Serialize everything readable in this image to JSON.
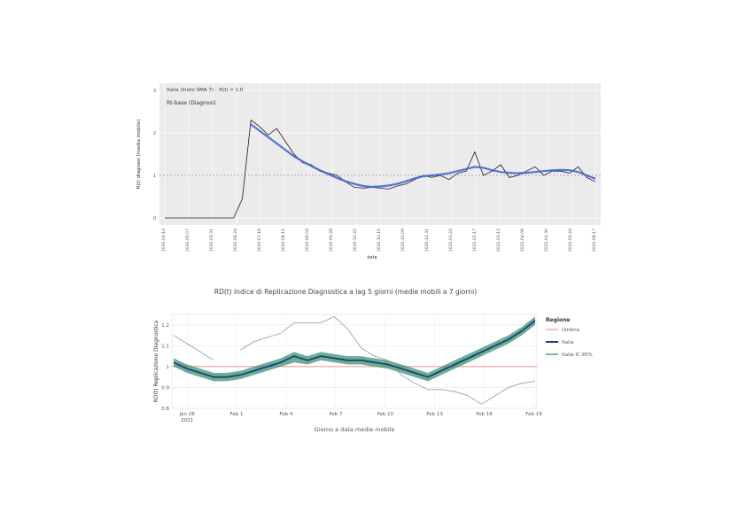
{
  "chart_data": [
    {
      "type": "line",
      "title": "",
      "annotations": [
        "Italia (Inizio SMA 7) – R(t) ≈ 1.0",
        "Rt-base (Diagnosi)"
      ],
      "xlabel": "data",
      "ylabel": "R(t) diagnosi (media mobile)",
      "yticks": [
        "0",
        "1",
        "2",
        "3"
      ],
      "ylim": [
        0,
        3
      ],
      "reference_line": 1.0,
      "x_tick_labels": [
        "2020-04-14",
        "2020-05-07",
        "2020-05-31",
        "2020-06-24",
        "2020-07-18",
        "2020-08-11",
        "2020-09-04",
        "2020-09-28",
        "2020-10-22",
        "2020-11-15",
        "2020-12-09",
        "2020-12-31",
        "2021-01-24",
        "2021-02-17",
        "2021-03-13",
        "2021-04-06",
        "2021-04-30",
        "2021-05-24",
        "2021-06-17"
      ],
      "x": [
        0,
        2,
        4,
        6,
        8,
        10,
        12,
        14,
        16,
        18,
        20,
        22,
        24,
        26,
        28,
        30,
        32,
        34,
        36,
        38,
        40,
        42,
        44,
        46,
        48,
        50,
        52,
        54,
        56,
        58,
        60,
        62,
        64,
        66,
        68,
        70,
        72,
        74,
        76,
        78,
        80,
        82,
        84,
        86,
        88,
        90,
        92,
        94,
        96,
        98,
        100
      ],
      "series": [
        {
          "name": "",
          "values": [
            0,
            0,
            0,
            0,
            0,
            0,
            0,
            0,
            0,
            0.45,
            2.3,
            2.15,
            1.95,
            2.1,
            1.8,
            1.5,
            1.3,
            1.25,
            1.1,
            1.05,
            1.0,
            0.85,
            0.72,
            0.7,
            0.72,
            0.7,
            0.68,
            0.75,
            0.8,
            0.9,
            1.0,
            0.95,
            1.0,
            0.9,
            1.05,
            1.1,
            1.55,
            1.0,
            1.1,
            1.25,
            0.95,
            1.0,
            1.1,
            1.2,
            1.0,
            1.1,
            1.1,
            1.05,
            1.2,
            0.95,
            0.85
          ],
          "color": "#1a1a1a"
        },
        {
          "name": "",
          "values": [
            null,
            null,
            null,
            null,
            null,
            null,
            null,
            null,
            null,
            null,
            2.2,
            2.05,
            1.9,
            1.75,
            1.6,
            1.45,
            1.33,
            1.22,
            1.12,
            1.03,
            0.94,
            0.86,
            0.8,
            0.75,
            0.73,
            0.74,
            0.76,
            0.8,
            0.86,
            0.93,
            0.98,
            1.0,
            1.02,
            1.05,
            1.1,
            1.15,
            1.2,
            1.18,
            1.12,
            1.08,
            1.06,
            1.05,
            1.06,
            1.08,
            1.1,
            1.12,
            1.13,
            1.12,
            1.08,
            1.0,
            0.92
          ],
          "color": "#3a5fcd"
        }
      ]
    },
    {
      "type": "line",
      "title": "RD(t) Indice di Replicazione Diagnostica a lag 5 giorni (medie mobili a 7 giorni)",
      "xlabel": "Giorno e data medie mobile",
      "ylabel": "RD(t) Replicazione Diagnostica",
      "yticks": [
        "0.8",
        "0.9",
        "1",
        "1.1",
        "1.2"
      ],
      "ylim": [
        0.8,
        1.25
      ],
      "reference_line": 1.0,
      "x_tick_labels": [
        "Jan 28\n2021",
        "Feb 1",
        "Feb 4",
        "Feb 7",
        "Feb 10",
        "Feb 13",
        "Feb 16",
        "Feb 19"
      ],
      "x": [
        0,
        1,
        2,
        3,
        4,
        5,
        6,
        7,
        8,
        9,
        10,
        11,
        12,
        13,
        14,
        15,
        16,
        17,
        18,
        19,
        20,
        21,
        22,
        23,
        24,
        25,
        26,
        27
      ],
      "legend_title": "Regione",
      "legend_position": "right",
      "series": [
        {
          "name": "Umbria",
          "color": "#e89a9a",
          "values": [
            1.15,
            1.11,
            1.07,
            1.03,
            null,
            1.08,
            1.12,
            1.14,
            1.16,
            1.21,
            1.21,
            1.21,
            1.24,
            1.18,
            1.09,
            1.05,
            1.03,
            0.96,
            0.92,
            0.89,
            0.89,
            0.88,
            0.86,
            0.82,
            0.86,
            0.9,
            0.92,
            0.93
          ]
        },
        {
          "name": "Italia",
          "color": "#1f3f7a",
          "values": [
            1.02,
            0.99,
            0.97,
            0.95,
            0.95,
            0.96,
            0.98,
            1.0,
            1.02,
            1.05,
            1.03,
            1.05,
            1.04,
            1.03,
            1.03,
            1.02,
            1.01,
            0.99,
            0.97,
            0.95,
            0.98,
            1.01,
            1.04,
            1.07,
            1.1,
            1.13,
            1.17,
            1.22
          ]
        },
        {
          "name": "Italia IC 95%",
          "color": "#2e8b6a",
          "values_low": [
            1.0,
            0.97,
            0.95,
            0.93,
            0.93,
            0.94,
            0.96,
            0.98,
            1.0,
            1.02,
            1.01,
            1.03,
            1.02,
            1.01,
            1.01,
            1.0,
            0.99,
            0.97,
            0.95,
            0.93,
            0.96,
            0.99,
            1.02,
            1.05,
            1.08,
            1.11,
            1.15,
            1.2
          ],
          "values_high": [
            1.04,
            1.01,
            0.99,
            0.97,
            0.97,
            0.98,
            1.0,
            1.02,
            1.04,
            1.07,
            1.05,
            1.07,
            1.06,
            1.05,
            1.05,
            1.04,
            1.03,
            1.01,
            0.99,
            0.97,
            1.0,
            1.03,
            1.06,
            1.09,
            1.12,
            1.15,
            1.19,
            1.24
          ]
        }
      ]
    }
  ]
}
